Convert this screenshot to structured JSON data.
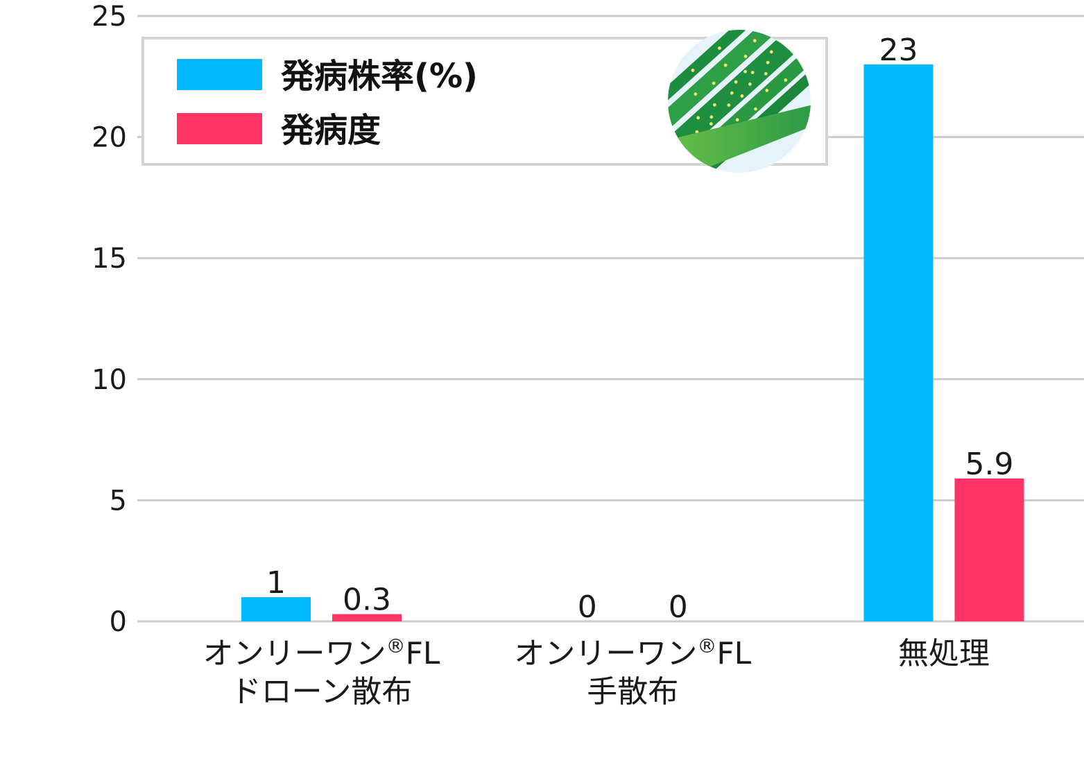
{
  "chart_data": {
    "type": "bar",
    "categories": [
      [
        "オンリーワン®FL",
        "ドローン散布"
      ],
      [
        "オンリーワン®FL",
        "手散布"
      ],
      [
        "無処理"
      ]
    ],
    "series": [
      {
        "name": "発病株率(%)",
        "color": "#00B9FF",
        "values": [
          1,
          0,
          23
        ]
      },
      {
        "name": "発病度",
        "color": "#FF3366",
        "values": [
          0.3,
          0,
          5.9
        ]
      }
    ],
    "ylim": [
      0,
      25
    ],
    "yticks": [
      0,
      5,
      10,
      15,
      20,
      25
    ],
    "grid": true,
    "gridline_color": "#CCCCCC",
    "data_labels": true,
    "legend": {
      "placement": "top-left",
      "icon": "diseased-leaf-icon"
    }
  }
}
